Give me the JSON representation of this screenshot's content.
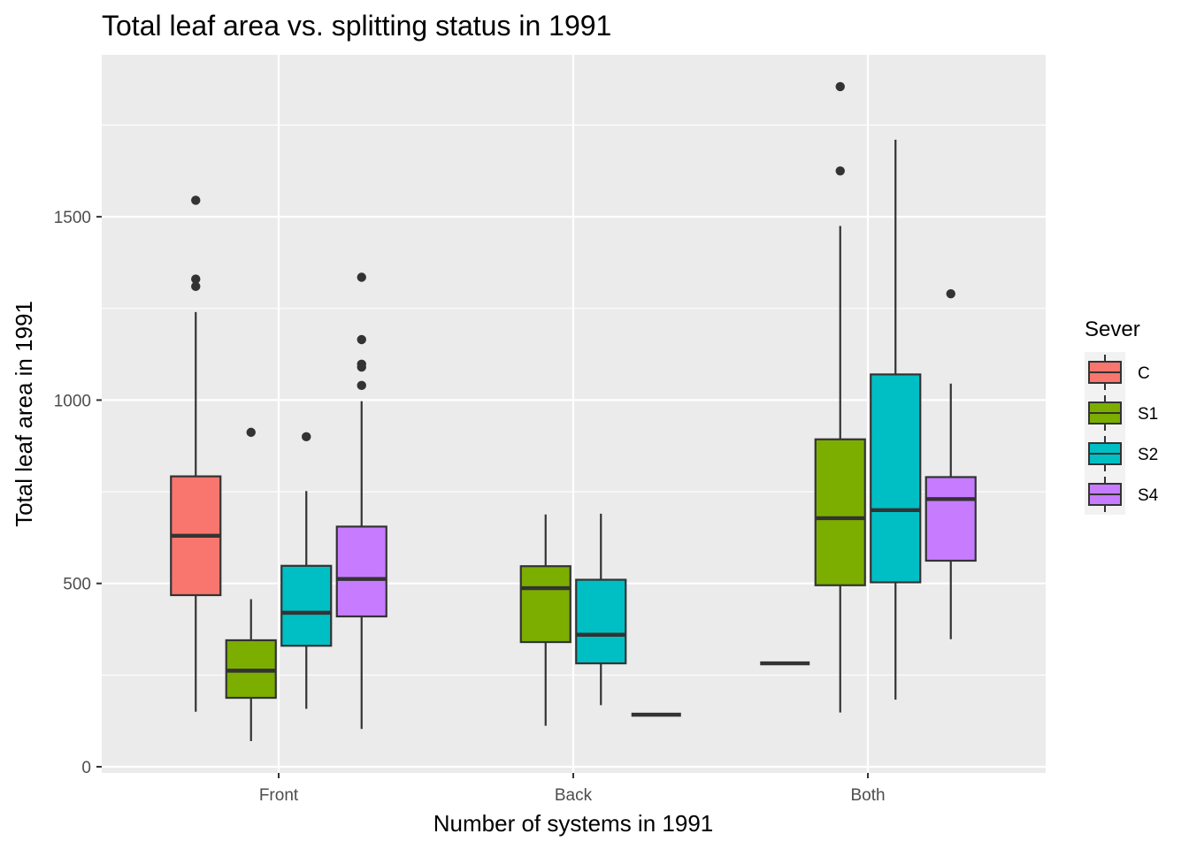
{
  "chart_data": {
    "type": "boxplot",
    "title": "Total leaf area vs. splitting status in 1991",
    "xlabel": "Number of systems in 1991",
    "ylabel": "Total leaf area in 1991",
    "ylim": [
      -20,
      1940
    ],
    "yticks": [
      0,
      500,
      1000,
      1500
    ],
    "categories": [
      "Front",
      "Back",
      "Both"
    ],
    "legend": {
      "title": "Sever",
      "position": "right",
      "entries": [
        {
          "name": "C",
          "color": "#F8766D"
        },
        {
          "name": "S1",
          "color": "#7CAE00"
        },
        {
          "name": "S2",
          "color": "#00BFC4"
        },
        {
          "name": "S4",
          "color": "#C77CFF"
        }
      ]
    },
    "groups": [
      {
        "category": "Front",
        "boxes": [
          {
            "sever": "C",
            "min": 150,
            "q1": 468,
            "median": 630,
            "q3": 792,
            "max": 1240,
            "outliers": [
              1310,
              1330,
              1545
            ]
          },
          {
            "sever": "S1",
            "min": 70,
            "q1": 188,
            "median": 262,
            "q3": 345,
            "max": 457,
            "outliers": [
              912
            ]
          },
          {
            "sever": "S2",
            "min": 158,
            "q1": 330,
            "median": 420,
            "q3": 548,
            "max": 752,
            "outliers": [
              900
            ]
          },
          {
            "sever": "S4",
            "min": 103,
            "q1": 410,
            "median": 512,
            "q3": 655,
            "max": 997,
            "outliers": [
              1040,
              1090,
              1098,
              1165,
              1335
            ]
          }
        ]
      },
      {
        "category": "Back",
        "boxes": [
          {
            "sever": "S1",
            "min": 112,
            "q1": 340,
            "median": 487,
            "q3": 547,
            "max": 688,
            "outliers": []
          },
          {
            "sever": "S2",
            "min": 168,
            "q1": 282,
            "median": 360,
            "q3": 510,
            "max": 690,
            "outliers": []
          },
          {
            "sever": "S4",
            "min": 142,
            "q1": 142,
            "median": 142,
            "q3": 142,
            "max": 142,
            "outliers": []
          }
        ]
      },
      {
        "category": "Both",
        "boxes": [
          {
            "sever": "C",
            "min": 282,
            "q1": 282,
            "median": 282,
            "q3": 282,
            "max": 282,
            "outliers": []
          },
          {
            "sever": "S1",
            "min": 148,
            "q1": 495,
            "median": 678,
            "q3": 893,
            "max": 1475,
            "outliers": [
              1625,
              1855
            ]
          },
          {
            "sever": "S2",
            "min": 183,
            "q1": 503,
            "median": 700,
            "q3": 1070,
            "max": 1710,
            "outliers": []
          },
          {
            "sever": "S4",
            "min": 348,
            "q1": 562,
            "median": 730,
            "q3": 790,
            "max": 1045,
            "outliers": [
              1290
            ]
          }
        ]
      }
    ]
  }
}
